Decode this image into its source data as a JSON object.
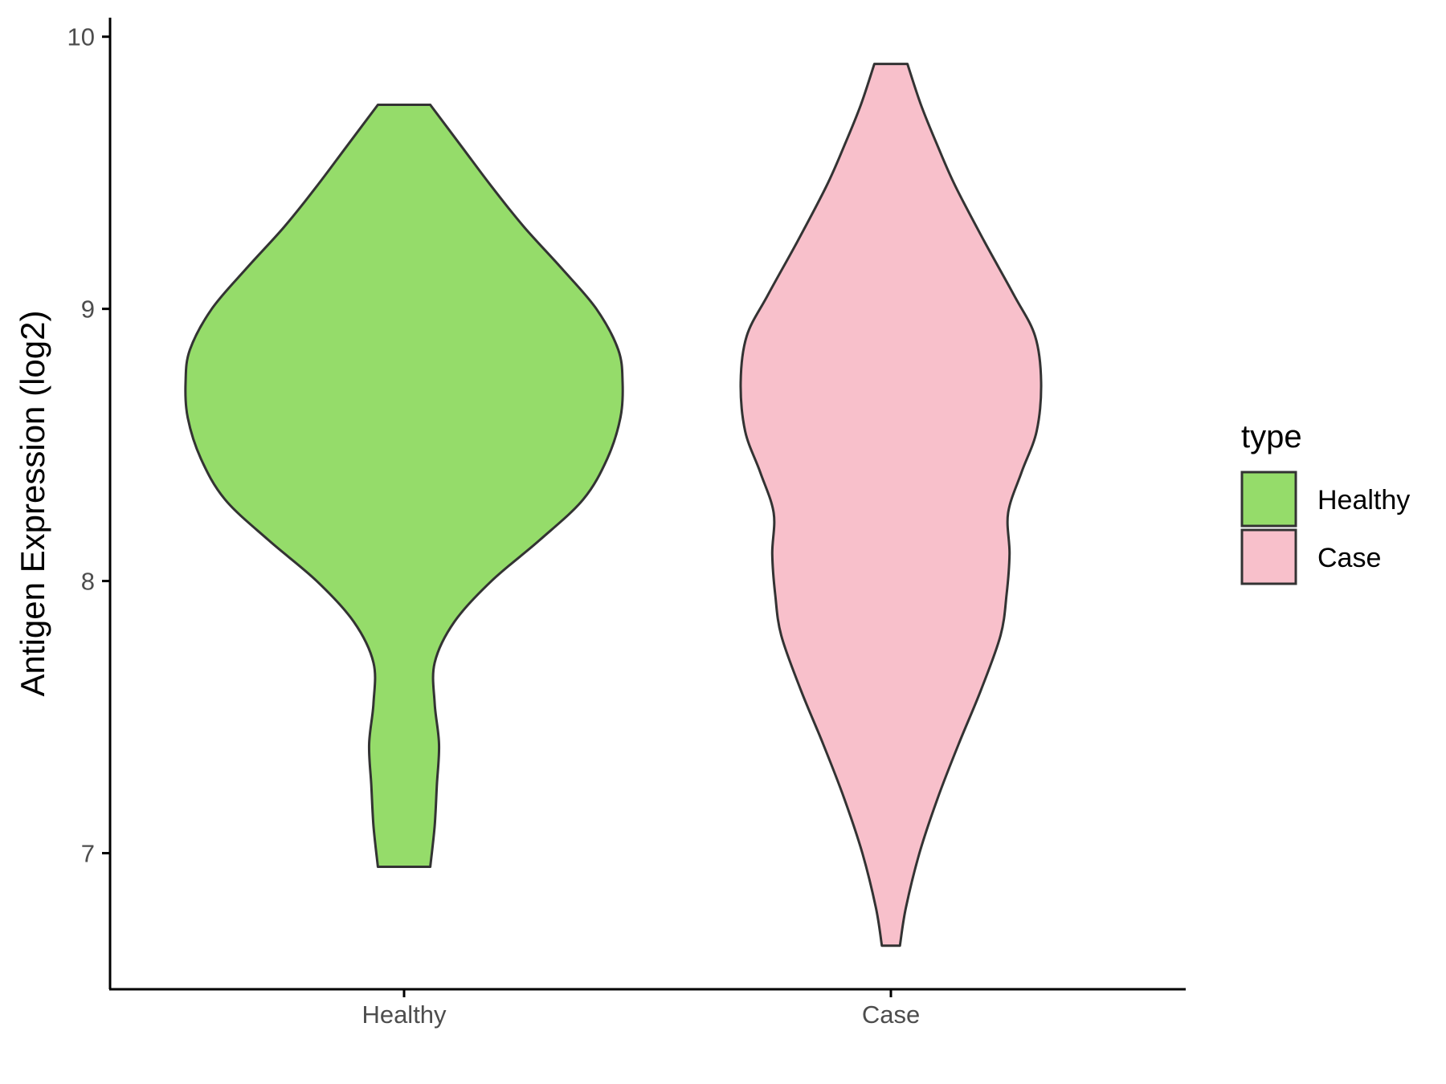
{
  "chart_data": {
    "type": "violin",
    "title": "",
    "xlabel": "",
    "ylabel": "Antigen Expression (log2)",
    "categories": [
      "Healthy",
      "Case"
    ],
    "ylim": [
      6.5,
      10.07
    ],
    "yticks": [
      7,
      8,
      9,
      10
    ],
    "grid": false,
    "legend": {
      "title": "type",
      "position": "right",
      "entries": [
        "Healthy",
        "Case"
      ]
    },
    "series": [
      {
        "name": "Healthy",
        "color": "#95dc6a",
        "min": 6.95,
        "max": 9.75,
        "density_profile": [
          [
            6.95,
            0.12
          ],
          [
            7.1,
            0.14
          ],
          [
            7.25,
            0.15
          ],
          [
            7.4,
            0.16
          ],
          [
            7.55,
            0.14
          ],
          [
            7.7,
            0.14
          ],
          [
            7.85,
            0.23
          ],
          [
            8.0,
            0.4
          ],
          [
            8.15,
            0.62
          ],
          [
            8.3,
            0.82
          ],
          [
            8.45,
            0.93
          ],
          [
            8.6,
            0.99
          ],
          [
            8.73,
            1.0
          ],
          [
            8.85,
            0.98
          ],
          [
            9.0,
            0.88
          ],
          [
            9.15,
            0.72
          ],
          [
            9.3,
            0.55
          ],
          [
            9.45,
            0.4
          ],
          [
            9.6,
            0.26
          ],
          [
            9.75,
            0.12
          ]
        ]
      },
      {
        "name": "Case",
        "color": "#f8c0cb",
        "min": 6.66,
        "max": 9.9,
        "density_profile": [
          [
            6.66,
            0.06
          ],
          [
            6.8,
            0.1
          ],
          [
            7.0,
            0.19
          ],
          [
            7.2,
            0.31
          ],
          [
            7.4,
            0.45
          ],
          [
            7.6,
            0.6
          ],
          [
            7.8,
            0.73
          ],
          [
            7.95,
            0.77
          ],
          [
            8.1,
            0.79
          ],
          [
            8.25,
            0.78
          ],
          [
            8.4,
            0.87
          ],
          [
            8.55,
            0.97
          ],
          [
            8.73,
            1.0
          ],
          [
            8.9,
            0.96
          ],
          [
            9.05,
            0.82
          ],
          [
            9.25,
            0.62
          ],
          [
            9.45,
            0.43
          ],
          [
            9.6,
            0.31
          ],
          [
            9.75,
            0.2
          ],
          [
            9.9,
            0.11
          ]
        ]
      }
    ]
  }
}
